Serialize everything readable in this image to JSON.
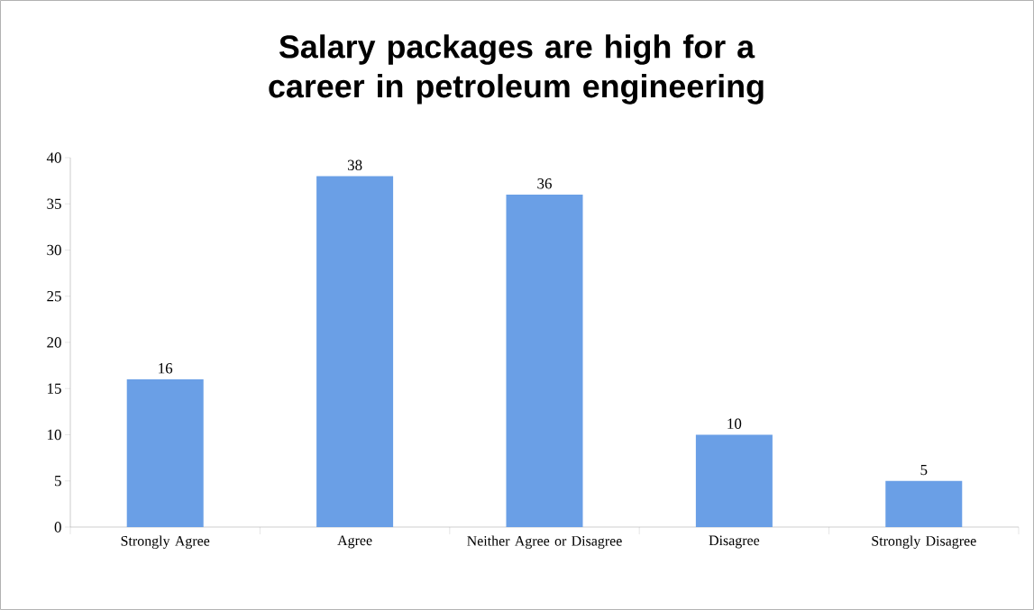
{
  "chart_data": {
    "type": "bar",
    "title": "Salary packages are high for a career in petroleum engineering",
    "categories": [
      "Strongly Agree",
      "Agree",
      "Neither Agree or Disagree",
      "Disagree",
      "Strongly Disagree"
    ],
    "values": [
      16,
      38,
      36,
      10,
      5
    ],
    "color": "#6a9fe6",
    "ylim": [
      0,
      40
    ],
    "yticks": [
      0,
      5,
      10,
      15,
      20,
      25,
      30,
      35,
      40
    ],
    "grid": false,
    "data_labels": true
  }
}
